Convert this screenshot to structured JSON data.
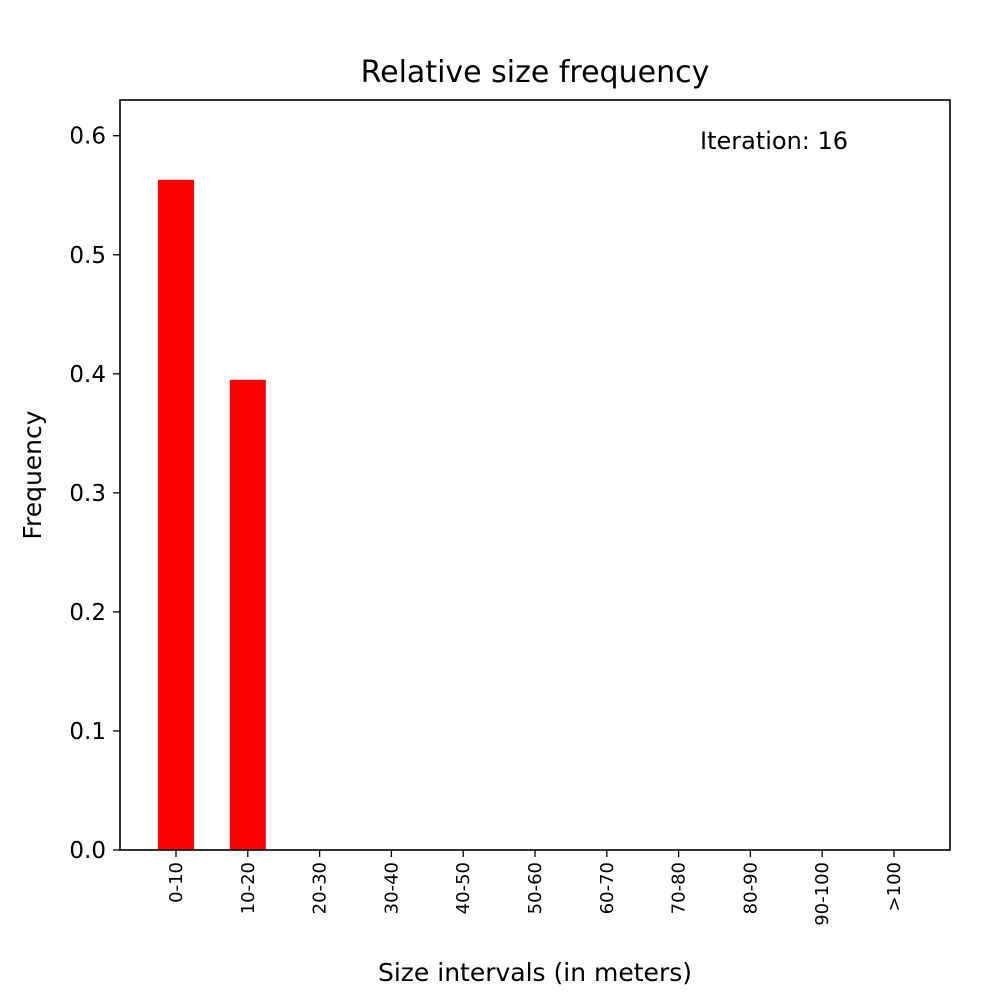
{
  "chart_data": {
    "type": "bar",
    "title": "Relative size frequency",
    "xlabel": "Size intervals (in meters)",
    "ylabel": "Frequency",
    "annotation": "Iteration: 16",
    "categories": [
      "0-10",
      "10-20",
      "20-30",
      "30-40",
      "40-50",
      "50-60",
      "60-70",
      "70-80",
      "80-90",
      "90-100",
      ">100"
    ],
    "values": [
      0.563,
      0.395,
      0,
      0,
      0,
      0,
      0,
      0,
      0,
      0,
      0
    ],
    "ylim": [
      0,
      0.63
    ],
    "yticks": [
      0.0,
      0.1,
      0.2,
      0.3,
      0.4,
      0.5,
      0.6
    ],
    "ytick_labels": [
      "0.0",
      "0.1",
      "0.2",
      "0.3",
      "0.4",
      "0.5",
      "0.6"
    ],
    "bar_color": "#ff0000",
    "grid": false,
    "legend": "none"
  }
}
